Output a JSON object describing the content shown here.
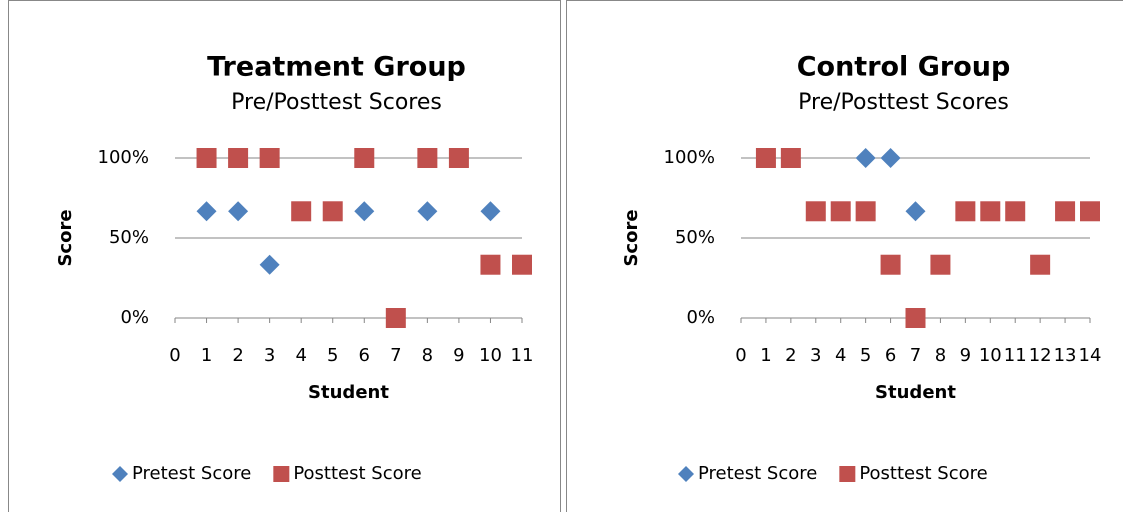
{
  "chart_data": [
    {
      "type": "scatter",
      "title": "Treatment Group",
      "subtitle": "Pre/Posttest Scores",
      "x_label": "Student",
      "y_label": "Score",
      "xlim": [
        0,
        11
      ],
      "xticks": [
        0,
        1,
        2,
        3,
        4,
        5,
        6,
        7,
        8,
        9,
        10,
        11
      ],
      "ylim": [
        0,
        100
      ],
      "yticks": [
        {
          "value": 0,
          "label": "0%"
        },
        {
          "value": 50,
          "label": "50%"
        },
        {
          "value": 100,
          "label": "100%"
        }
      ],
      "grid": true,
      "legend": "bottom",
      "series": [
        {
          "name": "Pretest Score",
          "color": "#4f81bd",
          "marker": "diamond",
          "x": [
            1,
            2,
            3,
            6,
            8,
            10
          ],
          "values": [
            66.7,
            66.7,
            33.3,
            66.7,
            66.7,
            66.7
          ]
        },
        {
          "name": "Posttest Score",
          "color": "#c0504d",
          "marker": "square",
          "x": [
            1,
            2,
            3,
            4,
            5,
            6,
            7,
            8,
            9,
            10,
            11
          ],
          "values": [
            100,
            100,
            100,
            66.7,
            66.7,
            100,
            0,
            100,
            100,
            33.3,
            33.3
          ]
        }
      ]
    },
    {
      "type": "scatter",
      "title": "Control Group",
      "subtitle": "Pre/Posttest Scores",
      "x_label": "Student",
      "y_label": "Score",
      "xlim": [
        0,
        14
      ],
      "xticks": [
        0,
        1,
        2,
        3,
        4,
        5,
        6,
        7,
        8,
        9,
        10,
        11,
        12,
        13,
        14
      ],
      "ylim": [
        0,
        100
      ],
      "yticks": [
        {
          "value": 0,
          "label": "0%"
        },
        {
          "value": 50,
          "label": "50%"
        },
        {
          "value": 100,
          "label": "100%"
        }
      ],
      "grid": true,
      "legend": "bottom",
      "series": [
        {
          "name": "Pretest Score",
          "color": "#4f81bd",
          "marker": "diamond",
          "x": [
            5,
            6,
            7
          ],
          "values": [
            100,
            100,
            66.7
          ]
        },
        {
          "name": "Posttest Score",
          "color": "#c0504d",
          "marker": "square",
          "x": [
            1,
            2,
            3,
            4,
            5,
            6,
            7,
            8,
            9,
            10,
            11,
            12,
            13,
            14
          ],
          "values": [
            100,
            100,
            66.7,
            66.7,
            66.7,
            33.3,
            0,
            33.3,
            66.7,
            66.7,
            66.7,
            33.3,
            66.7,
            66.7
          ]
        }
      ]
    }
  ]
}
